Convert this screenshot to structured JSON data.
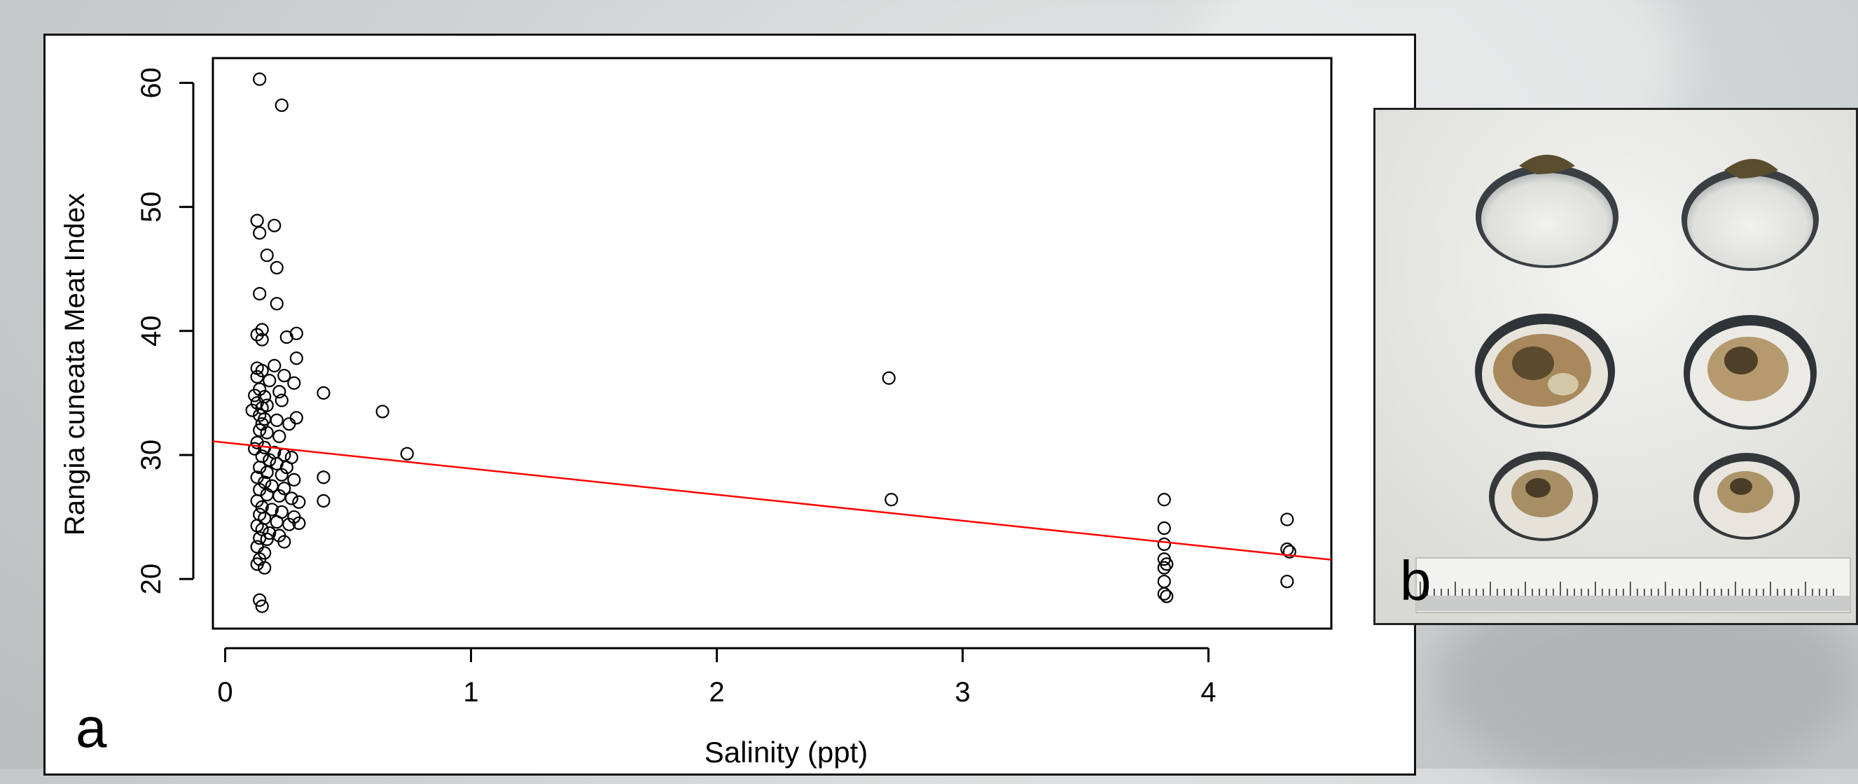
{
  "panel_a": {
    "letter": "a"
  },
  "panel_b": {
    "letter": "b",
    "image": "clam-shells-photo"
  },
  "colors": {
    "points": "#000000",
    "fit_line": "#ff0000",
    "frame": "#000000"
  },
  "chart_data": {
    "type": "scatter",
    "xlabel": "Salinity (ppt)",
    "ylabel": "Rangia cuneata Meat Index",
    "xlim": [
      -0.05,
      4.5
    ],
    "ylim": [
      16,
      62
    ],
    "xticks": [
      0,
      1,
      2,
      3,
      4
    ],
    "yticks": [
      20,
      30,
      40,
      50,
      60
    ],
    "grid": false,
    "series": [
      {
        "values": [
          [
            0.14,
            60.3
          ],
          [
            0.23,
            58.2
          ],
          [
            0.13,
            48.9
          ],
          [
            0.2,
            48.5
          ],
          [
            0.14,
            47.9
          ],
          [
            0.17,
            46.1
          ],
          [
            0.21,
            45.1
          ],
          [
            0.14,
            43.0
          ],
          [
            0.21,
            42.2
          ],
          [
            0.15,
            40.1
          ],
          [
            0.13,
            39.7
          ],
          [
            0.15,
            39.3
          ],
          [
            0.29,
            39.8
          ],
          [
            0.25,
            39.5
          ],
          [
            0.29,
            37.8
          ],
          [
            0.13,
            37.0
          ],
          [
            0.15,
            36.8
          ],
          [
            0.2,
            37.2
          ],
          [
            0.13,
            36.3
          ],
          [
            0.18,
            36.0
          ],
          [
            0.24,
            36.4
          ],
          [
            0.28,
            35.8
          ],
          [
            0.14,
            35.3
          ],
          [
            0.12,
            34.8
          ],
          [
            0.16,
            34.7
          ],
          [
            0.22,
            35.1
          ],
          [
            0.4,
            35.0
          ],
          [
            0.13,
            34.2
          ],
          [
            0.15,
            33.8
          ],
          [
            0.17,
            34.0
          ],
          [
            0.23,
            34.4
          ],
          [
            0.11,
            33.6
          ],
          [
            0.14,
            33.2
          ],
          [
            0.16,
            32.9
          ],
          [
            0.21,
            32.8
          ],
          [
            0.26,
            32.5
          ],
          [
            0.29,
            33.0
          ],
          [
            0.64,
            33.5
          ],
          [
            0.15,
            32.5
          ],
          [
            0.14,
            32.0
          ],
          [
            0.17,
            31.8
          ],
          [
            0.22,
            31.5
          ],
          [
            0.13,
            31.0
          ],
          [
            0.16,
            30.6
          ],
          [
            0.2,
            30.2
          ],
          [
            0.24,
            30.0
          ],
          [
            0.27,
            29.8
          ],
          [
            0.74,
            30.1
          ],
          [
            0.12,
            30.5
          ],
          [
            0.15,
            29.9
          ],
          [
            0.18,
            29.6
          ],
          [
            0.21,
            29.3
          ],
          [
            0.25,
            29.0
          ],
          [
            0.14,
            29.0
          ],
          [
            0.17,
            28.6
          ],
          [
            0.23,
            28.4
          ],
          [
            0.28,
            28.0
          ],
          [
            0.4,
            28.2
          ],
          [
            0.13,
            28.2
          ],
          [
            0.16,
            27.8
          ],
          [
            0.19,
            27.5
          ],
          [
            0.24,
            27.3
          ],
          [
            0.14,
            27.2
          ],
          [
            0.17,
            26.8
          ],
          [
            0.22,
            26.7
          ],
          [
            0.27,
            26.5
          ],
          [
            0.3,
            26.2
          ],
          [
            0.4,
            26.3
          ],
          [
            0.13,
            26.3
          ],
          [
            0.15,
            25.8
          ],
          [
            0.19,
            25.6
          ],
          [
            0.23,
            25.4
          ],
          [
            0.28,
            25.0
          ],
          [
            0.14,
            25.2
          ],
          [
            0.16,
            24.9
          ],
          [
            0.21,
            24.6
          ],
          [
            0.26,
            24.4
          ],
          [
            0.3,
            24.5
          ],
          [
            0.13,
            24.3
          ],
          [
            0.15,
            24.0
          ],
          [
            0.18,
            23.7
          ],
          [
            0.22,
            23.5
          ],
          [
            0.14,
            23.3
          ],
          [
            0.17,
            23.2
          ],
          [
            0.24,
            23.0
          ],
          [
            0.13,
            22.6
          ],
          [
            0.16,
            22.1
          ],
          [
            0.14,
            21.6
          ],
          [
            0.13,
            21.2
          ],
          [
            0.16,
            20.9
          ],
          [
            0.14,
            18.3
          ],
          [
            0.15,
            17.8
          ],
          [
            2.7,
            36.2
          ],
          [
            2.71,
            26.4
          ],
          [
            3.82,
            26.4
          ],
          [
            3.82,
            24.1
          ],
          [
            3.82,
            22.8
          ],
          [
            3.82,
            21.6
          ],
          [
            3.83,
            21.2
          ],
          [
            3.82,
            20.9
          ],
          [
            3.82,
            19.8
          ],
          [
            3.82,
            18.8
          ],
          [
            3.83,
            18.6
          ],
          [
            4.32,
            24.8
          ],
          [
            4.32,
            22.4
          ],
          [
            4.33,
            22.2
          ],
          [
            4.32,
            19.8
          ]
        ]
      }
    ],
    "regression": {
      "intercept": 31.0,
      "slope": -2.1
    }
  }
}
